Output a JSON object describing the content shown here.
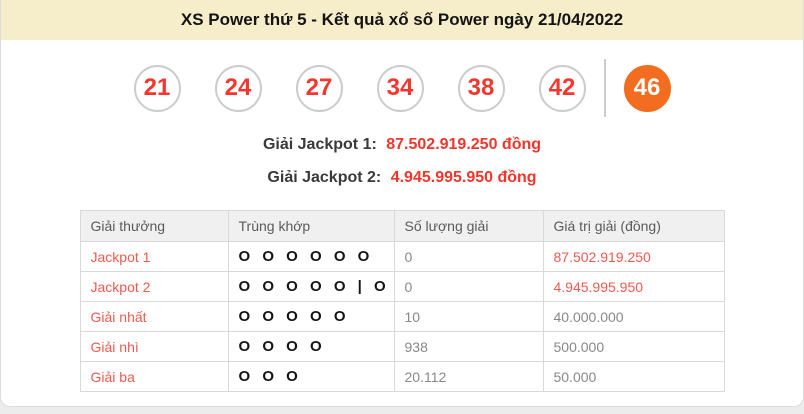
{
  "header": {
    "title": "XS Power thứ 5 - Kết quả xổ số Power ngày 21/04/2022"
  },
  "balls": {
    "main": [
      "21",
      "24",
      "27",
      "34",
      "38",
      "42"
    ],
    "power": "46"
  },
  "jackpots": [
    {
      "label": "Giải Jackpot 1:",
      "value": "87.502.919.250 đồng"
    },
    {
      "label": "Giải Jackpot 2:",
      "value": "4.945.995.950 đồng"
    }
  ],
  "table": {
    "columns": [
      "Giải thưởng",
      "Trùng khớp",
      "Số lượng giải",
      "Giá trị giải (đồng)"
    ],
    "rows": [
      {
        "prize": "Jackpot 1",
        "match": "O O O O O O",
        "count": "0",
        "value": "87.502.919.250"
      },
      {
        "prize": "Jackpot 2",
        "match": "O O O O O | O",
        "count": "0",
        "value": "4.945.995.950"
      },
      {
        "prize": "Giải nhất",
        "match": "O O O O O",
        "count": "10",
        "value": "40.000.000"
      },
      {
        "prize": "Giải nhì",
        "match": "O O O O",
        "count": "938",
        "value": "500.000"
      },
      {
        "prize": "Giải ba",
        "match": "O O O",
        "count": "20.112",
        "value": "50.000"
      }
    ]
  },
  "colors": {
    "banner_yellow": "#f6edca",
    "ball_number_red": "#f4372d",
    "power_ball_orange": "#f26d1f",
    "jackpot_value_red": "#f0352b",
    "prize_label_salmon": "#ee5a4f"
  }
}
